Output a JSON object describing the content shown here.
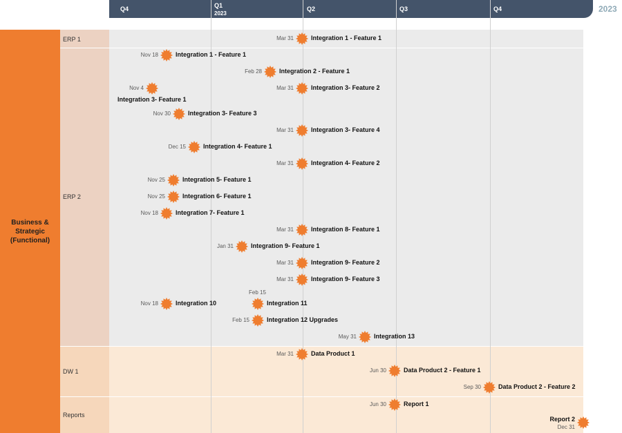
{
  "header": {
    "quarters": [
      {
        "label": "Q4",
        "year": ""
      },
      {
        "label": "Q1",
        "year": "2023"
      },
      {
        "label": "Q2",
        "year": ""
      },
      {
        "label": "Q3",
        "year": ""
      },
      {
        "label": "Q4",
        "year": ""
      }
    ],
    "year_right": "2023"
  },
  "swimlane": {
    "title": "Business & Strategic (Functional)"
  },
  "lanes": [
    {
      "label": "ERP 1"
    },
    {
      "label": "ERP 2"
    },
    {
      "label": "DW 1"
    },
    {
      "label": "Reports"
    }
  ],
  "milestones": [
    {
      "date": "Mar 31",
      "title": "Integration 1 - Feature 1"
    },
    {
      "date": "Nov 18",
      "title": "Integration 1 - Feature 1"
    },
    {
      "date": "Feb 28",
      "title": "Integration 2 - Feature 1"
    },
    {
      "date": "Nov 4",
      "title": "Integration 3- Feature 1"
    },
    {
      "date": "Mar 31",
      "title": "Integration 3- Feature 2"
    },
    {
      "date": "Nov 30",
      "title": "Integration 3- Feature 3"
    },
    {
      "date": "Mar 31",
      "title": "Integration 3- Feature 4"
    },
    {
      "date": "Dec 15",
      "title": "Integration 4- Feature 1"
    },
    {
      "date": "Mar 31",
      "title": "Integration 4- Feature 2"
    },
    {
      "date": "Nov 25",
      "title": "Integration 5- Feature 1"
    },
    {
      "date": "Nov 25",
      "title": "Integration 6- Feature 1"
    },
    {
      "date": "Nov 18",
      "title": "Integration 7- Feature 1"
    },
    {
      "date": "Mar 31",
      "title": "Integration 8- Feature 1"
    },
    {
      "date": "Jan 31",
      "title": "Integration 9- Feature 1"
    },
    {
      "date": "Mar 31",
      "title": "Integration 9- Feature 2"
    },
    {
      "date": "Mar 31",
      "title": "Integration 9- Feature 3"
    },
    {
      "date": "Nov 18",
      "title": "Integration 10"
    },
    {
      "date": "Feb 15",
      "title": "Integration 11"
    },
    {
      "date": "Feb 15",
      "title": "Integration 12 Upgrades"
    },
    {
      "date": "May 31",
      "title": "Integration 13"
    },
    {
      "date": "Mar 31",
      "title": "Data Product 1"
    },
    {
      "date": "Jun 30",
      "title": "Data Product 2 - Feature 1"
    },
    {
      "date": "Sep 30",
      "title": "Data Product 2 - Feature 2"
    },
    {
      "date": "Jun 30",
      "title": "Report 1"
    },
    {
      "date": "Dec 31",
      "title": "Report 2"
    }
  ],
  "colors": {
    "header": "#44546a",
    "accent": "#ef7d2f",
    "band_gray": "#ebebeb",
    "band_peach": "#fbe9d6",
    "label_gray": "#ecd2c2",
    "label_peach": "#f6d7bb"
  },
  "icons": {
    "milestone": "starburst-icon"
  }
}
